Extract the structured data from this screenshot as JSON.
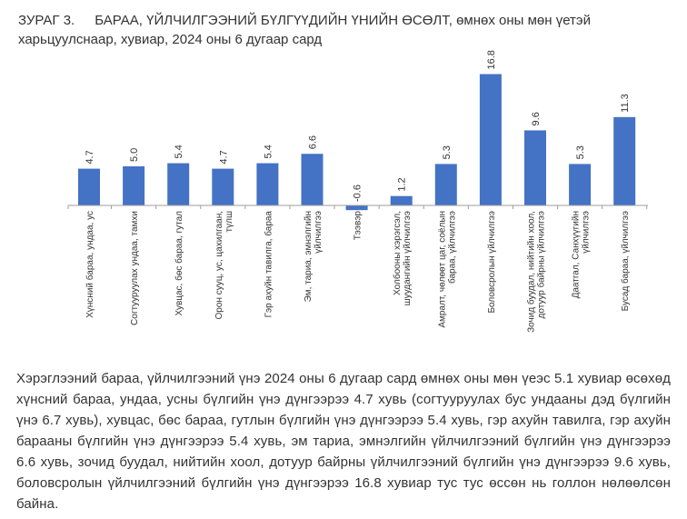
{
  "title": {
    "number": "ЗУРАГ 3.",
    "text": "БАРАА, ҮЙЛЧИЛГЭЭНИЙ БҮЛГҮҮДИЙН ҮНИЙН ӨСӨЛТ, өмнөх оны мөн үетэй харьцуулснаар, хувиар, 2024 оны 6 дугаар сард"
  },
  "colors": {
    "bar": "#4472c4",
    "axis": "#9e9e9e",
    "text": "#333333"
  },
  "chart_data": {
    "type": "bar",
    "categories": [
      "Хүнсний бараа, ундаа, ус",
      "Согтууруулах ундаа, тамхи",
      "Хувцас, бөс бараа, гутал",
      "Орон сууц, ус, цахилгаан, түлш",
      "Гэр ахуйн тавилга, бараа",
      "Эм, тариа, эмнэлгийн үйлчилгээ",
      "Тээвэр",
      "Холбооны хэрэгсэл, шуудангийн үйлчилгээ",
      "Амралт, чөлөөт цаг, соёлын бараа, үйлчилгээ",
      "Боловсролын үйлчилгээ",
      "Зочид буудал, нийтийн хоол, дотуур байрны үйлчилгээ",
      "Даатгал, Санхүүгийн үйлчилгээ",
      "Бусад бараа, үйлчилгээ"
    ],
    "category_lines": [
      [
        "Хүнсний бараа, ундаа, ус"
      ],
      [
        "Согтууруулах ундаа, тамхи"
      ],
      [
        "Хувцас, бөс бараа, гутал"
      ],
      [
        "Орон сууц, ус, цахилгаан,",
        "түлш"
      ],
      [
        "Гэр ахуйн тавилга, бараа"
      ],
      [
        "Эм, тариа, эмнэлгийн",
        "үйлчилгээ"
      ],
      [
        "Тээвэр"
      ],
      [
        "Холбооны хэрэгсэл,",
        "шуудангийн үйлчилгээ"
      ],
      [
        "Амралт, чөлөөт цаг, соёлын",
        "бараа, үйлчилгээ"
      ],
      [
        "Боловсролын үйлчилгээ"
      ],
      [
        "Зочид буудал, нийтийн хоол,",
        "дотуур байрны үйлчилгээ"
      ],
      [
        "Даатгал, Санхүүгийн",
        "үйлчилгээ"
      ],
      [
        "Бусад бараа, үйлчилгээ"
      ]
    ],
    "values": [
      4.7,
      5.0,
      5.4,
      4.7,
      5.4,
      6.6,
      -0.6,
      1.2,
      5.3,
      16.8,
      9.6,
      5.3,
      11.3
    ],
    "value_labels": [
      "4.7",
      "5.0",
      "5.4",
      "4.7",
      "5.4",
      "6.6",
      "-0.6",
      "1.2",
      "5.3",
      "16.8",
      "9.6",
      "5.3",
      "11.3"
    ],
    "ylim": [
      -1,
      17
    ],
    "grid": false,
    "legend": "none"
  },
  "description": "Хэрэглээний бараа, үйлчилгээний үнэ 2024 оны 6 дугаар сард өмнөх оны мөн үеэс 5.1 хувиар өсөхөд хүнсний бараа, ундаа, усны бүлгийн үнэ дүнгээрээ 4.7 хувь (согтууруулах бус ундааны дэд бүлгийн үнэ 6.7 хувь), хувцас, бөс бараа, гутлын бүлгийн үнэ дүнгээрээ 5.4 хувь, гэр ахуйн тавилга, гэр ахуйн барааны бүлгийн үнэ дүнгээрээ 5.4 хувь, эм тариа, эмнэлгийн үйлчилгээний бүлгийн үнэ дүнгээрээ 6.6 хувь, зочид буудал, нийтийн хоол, дотуур байрны үйлчилгээний бүлгийн үнэ дүнгээрээ 9.6 хувь, боловсролын үйлчилгээний бүлгийн үнэ дүнгээрээ 16.8 хувиар тус тус өссөн нь голлон нөлөөлсөн байна."
}
